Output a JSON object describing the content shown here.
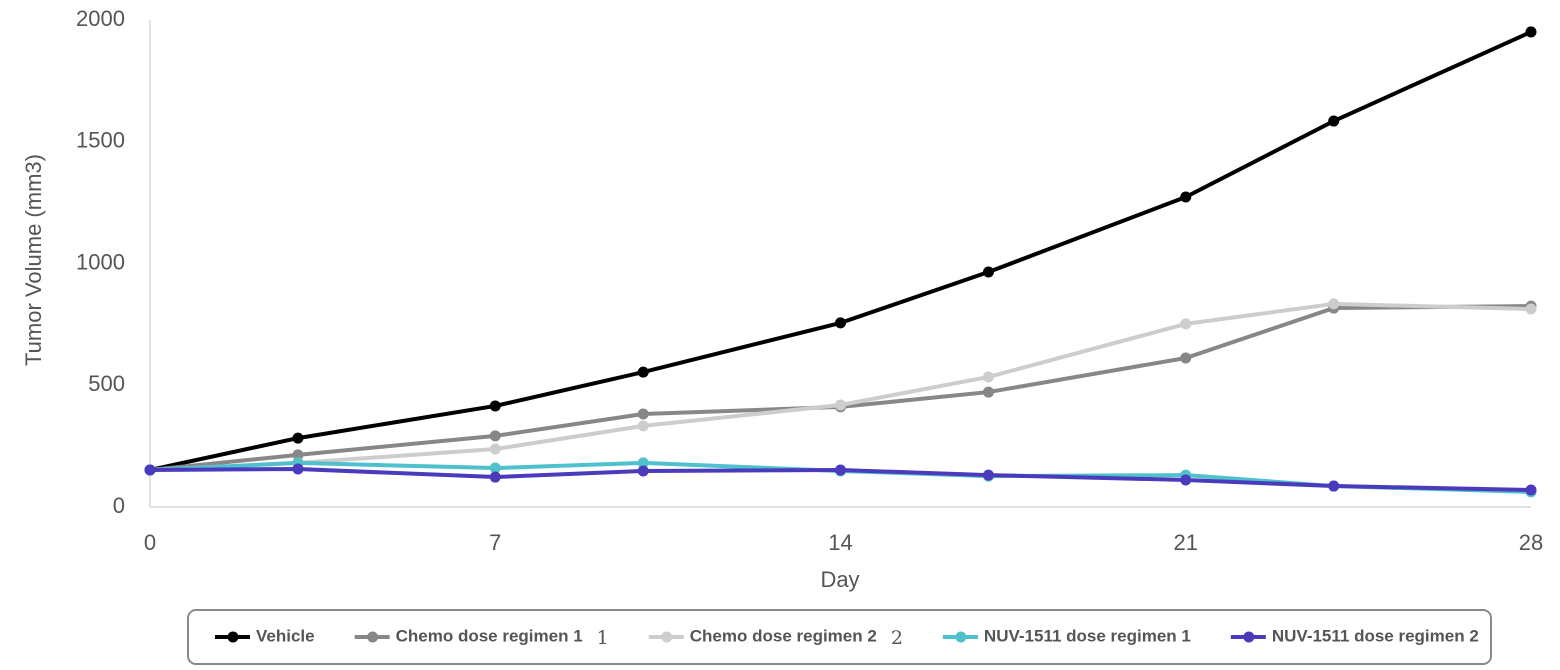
{
  "chart_data": {
    "type": "line",
    "x_label": "Day",
    "y_label": "Tumor Volume (mm3)",
    "x": [
      0,
      3,
      7,
      10,
      14,
      17,
      21,
      24,
      28
    ],
    "xlim": [
      0,
      28
    ],
    "xticks": [
      0,
      7,
      14,
      21,
      28
    ],
    "ylim": [
      0,
      2000
    ],
    "yticks": [
      0,
      500,
      1000,
      1500,
      2000
    ],
    "grid": false,
    "legend": "bottom",
    "series": [
      {
        "name": "Vehicle",
        "color": "#000000",
        "values": [
          152,
          283,
          415,
          554,
          756,
          965,
          1273,
          1585,
          1951
        ]
      },
      {
        "name": "Chemo dose regimen 1",
        "note": "1",
        "color": "#878787",
        "values": [
          152,
          214,
          292,
          382,
          411,
          472,
          612,
          817,
          825
        ]
      },
      {
        "name": "Chemo dose regimen 2",
        "note": "2",
        "color": "#cdcdcd",
        "values": [
          152,
          181,
          238,
          333,
          419,
          534,
          752,
          834,
          813
        ]
      },
      {
        "name": "NUV-1511 dose regimen 1",
        "color": "#4fc1cc",
        "values": [
          152,
          181,
          160,
          181,
          148,
          127,
          131,
          86,
          62
        ]
      },
      {
        "name": "NUV-1511 dose regimen 2",
        "color": "#4a3bbd",
        "values": [
          152,
          156,
          123,
          148,
          152,
          131,
          111,
          86,
          70
        ]
      }
    ]
  }
}
